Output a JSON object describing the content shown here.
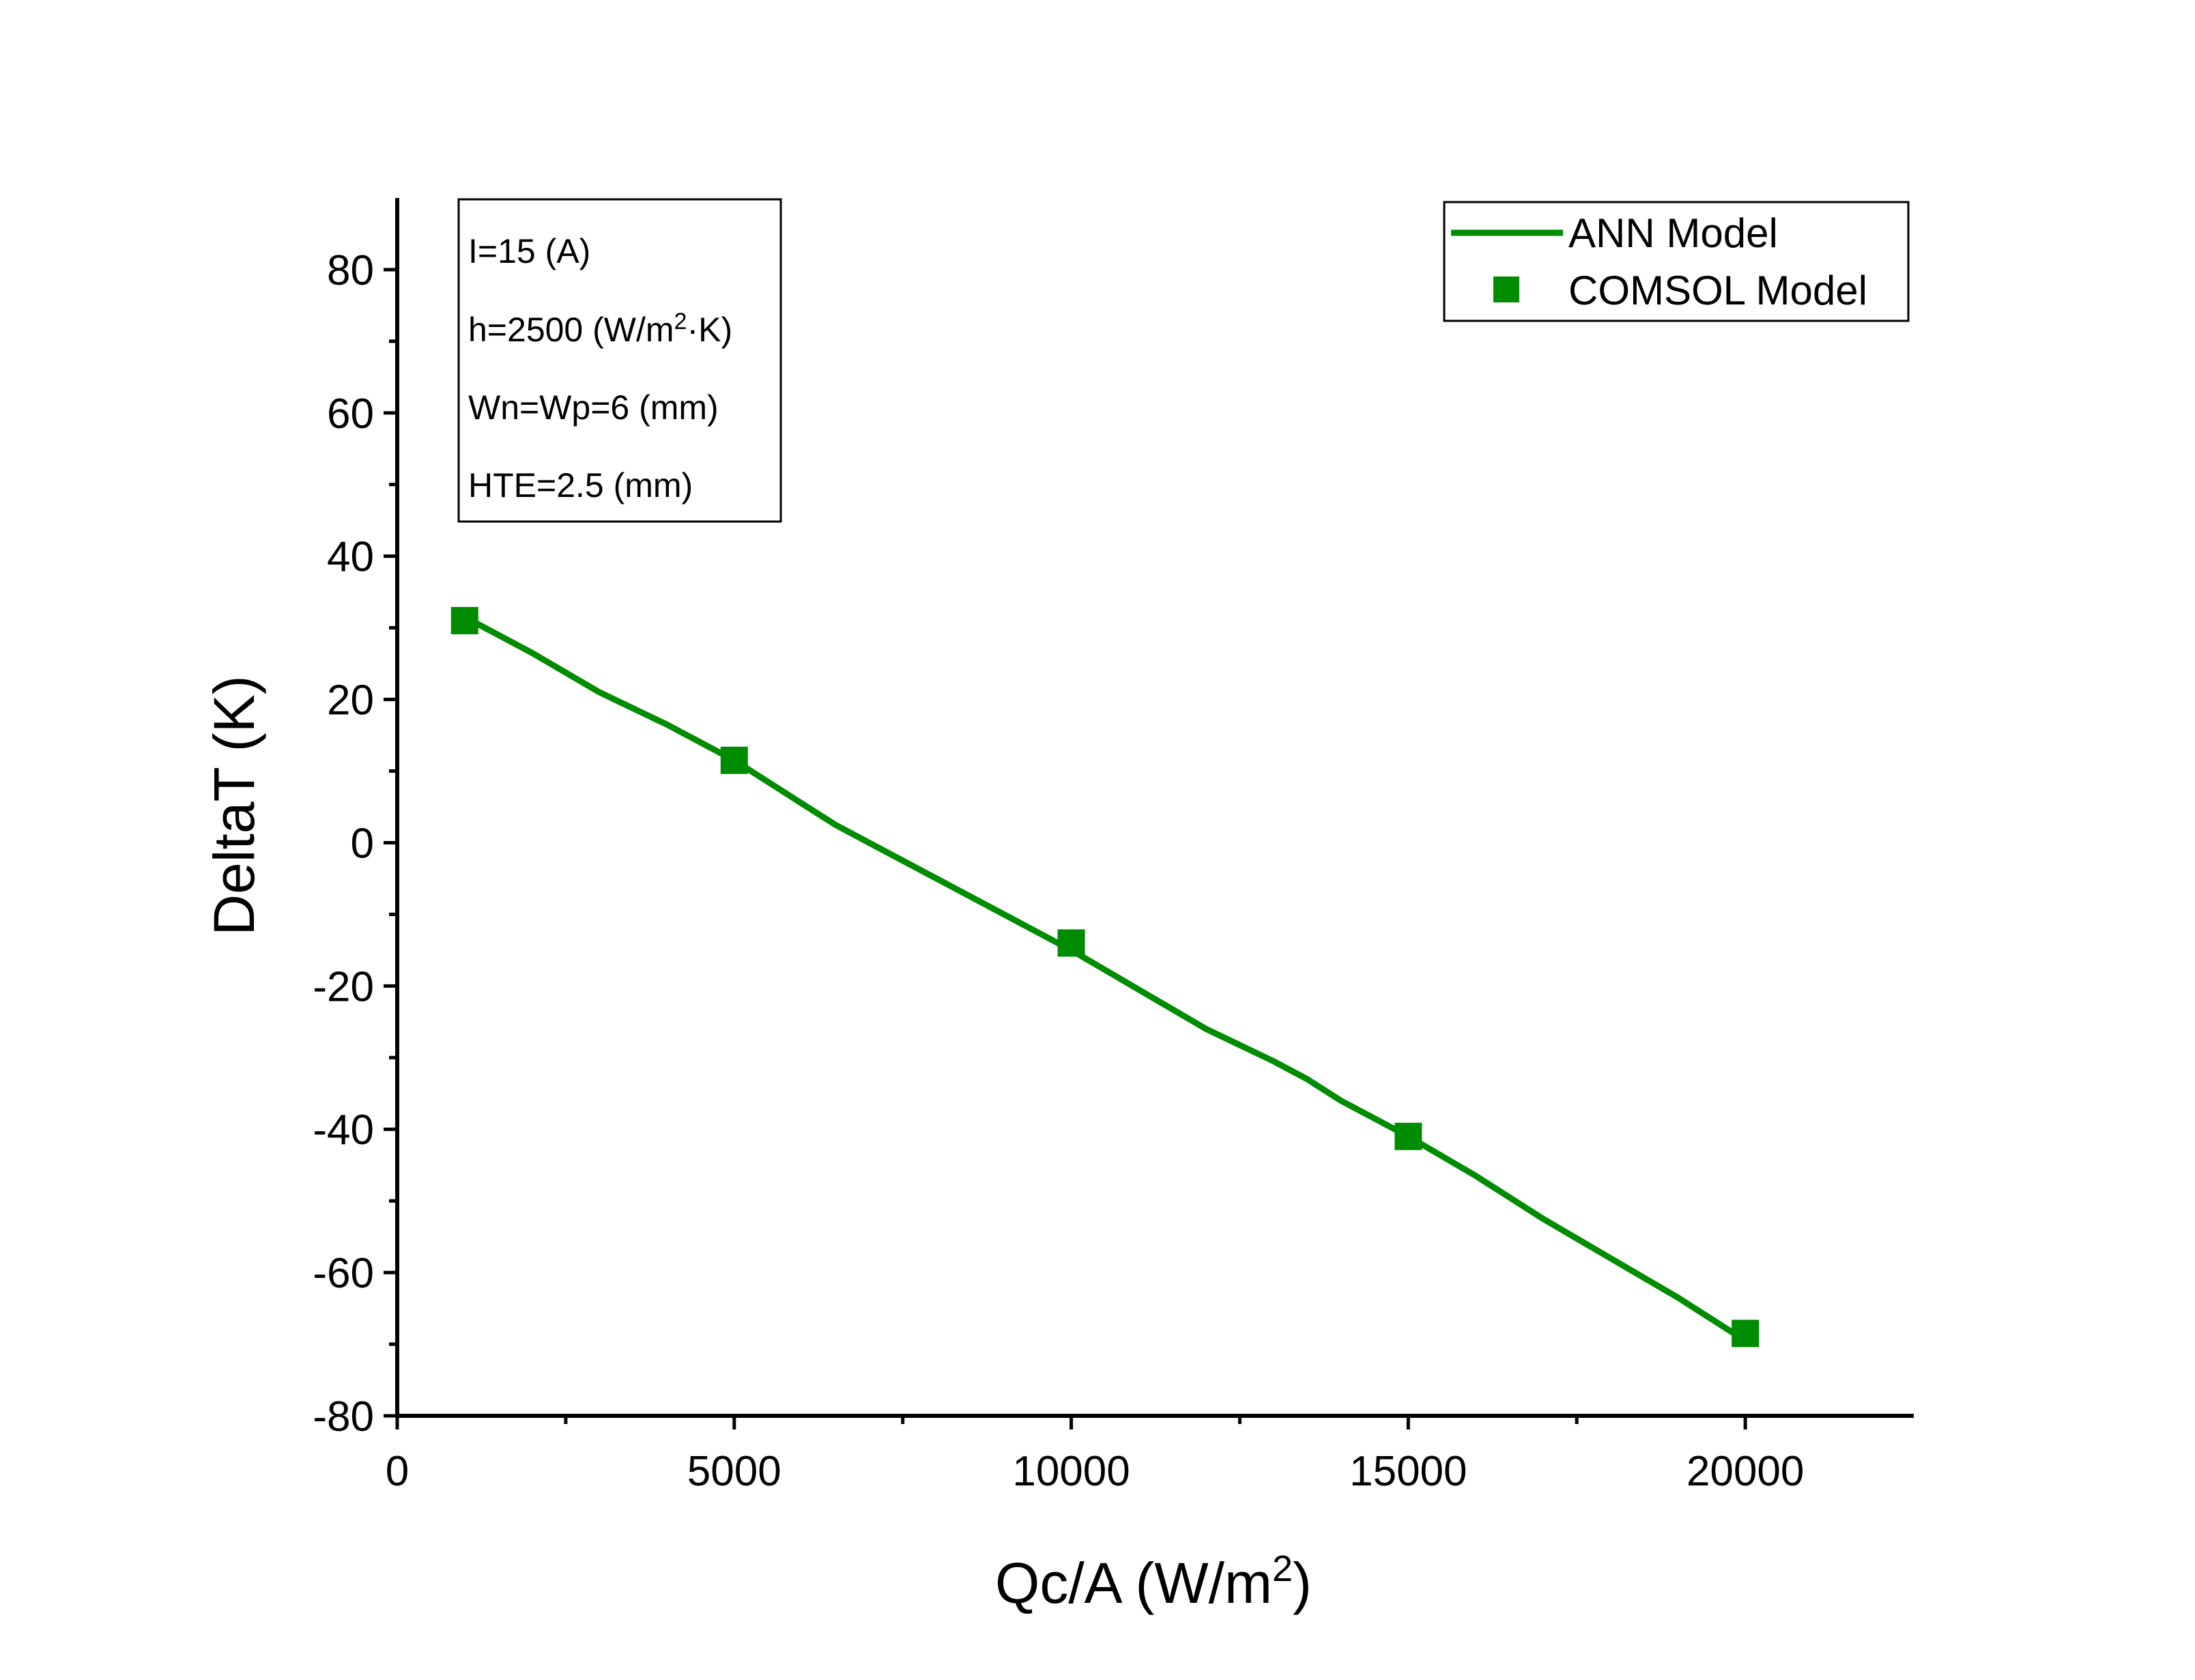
{
  "chart_data": {
    "type": "line",
    "title": "",
    "xlabel": "Qc/A (W/m",
    "xlabel_sup": "2",
    "xlabel_end": ")",
    "ylabel": "DeltaT (K)",
    "xlim": [
      0,
      22500
    ],
    "ylim": [
      -80,
      90
    ],
    "x_ticks": [
      0,
      5000,
      10000,
      15000,
      20000
    ],
    "x_tick_labels": [
      "0",
      "5000",
      "10000",
      "15000",
      "20000"
    ],
    "y_ticks": [
      -80,
      -60,
      -40,
      -20,
      0,
      20,
      40,
      60,
      80
    ],
    "y_tick_labels": [
      "-80",
      "-60",
      "-40",
      "-20",
      "0",
      "20",
      "40",
      "60",
      "80"
    ],
    "series": [
      {
        "name": "ANN Model",
        "style": "line",
        "color": "#008c00",
        "x": [
          1000,
          2000,
          3000,
          4000,
          5000,
          6000,
          6500,
          7000,
          8000,
          9000,
          10000,
          11000,
          12000,
          13000,
          13500,
          14000,
          15000,
          16000,
          17000,
          18000,
          19000,
          19500,
          20000
        ],
        "y": [
          31.5,
          26.5,
          21,
          16.5,
          11.5,
          5.5,
          2.5,
          0,
          -5,
          -10,
          -15,
          -20.5,
          -26,
          -30.5,
          -33,
          -36,
          -41,
          -46.5,
          -52.5,
          -58,
          -63.5,
          -66.5,
          -69.5
        ]
      },
      {
        "name": "COMSOL Model",
        "style": "marker",
        "marker": "square",
        "color": "#008c00",
        "x": [
          1000,
          5000,
          10000,
          15000,
          20000
        ],
        "y": [
          31,
          11.5,
          -14,
          -41,
          -68.5
        ]
      }
    ],
    "annotation": {
      "lines": [
        {
          "text": "I=15 (A)"
        },
        {
          "text": "h=2500 (W/m",
          "sup": "2",
          "end": "·K)"
        },
        {
          "text": "Wn=Wp=6 (mm)"
        },
        {
          "text": "HTE=2.5 (mm)"
        }
      ]
    },
    "legend_position": "top-right"
  }
}
